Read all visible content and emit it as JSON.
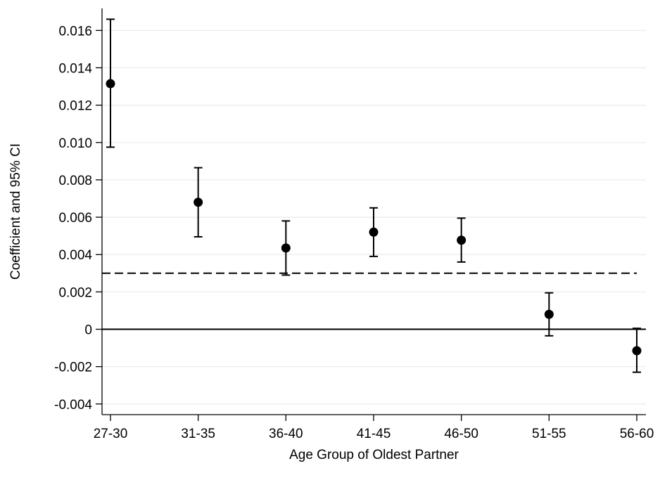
{
  "chart_data": {
    "type": "scatter",
    "subtype": "coefficient plot with 95% confidence intervals",
    "xlabel": "Age Group of Oldest Partner",
    "ylabel": "Coefficient and 95% CI",
    "categories": [
      "27-30",
      "31-35",
      "36-40",
      "41-45",
      "46-50",
      "51-55",
      "56-60"
    ],
    "series": [
      {
        "coefficients": [
          0.01315,
          0.0068,
          0.00435,
          0.0052,
          0.00477,
          0.0008,
          -0.00115
        ],
        "ci_lower": [
          0.00975,
          0.00495,
          0.0029,
          0.0039,
          0.0036,
          -0.00035,
          -0.0023
        ],
        "ci_upper": [
          0.0166,
          0.00865,
          0.0058,
          0.0065,
          0.00595,
          0.00195,
          5e-05
        ]
      }
    ],
    "yticks": [
      "0.016",
      "0.014",
      "0.012",
      "0.010",
      "0.008",
      "0.006",
      "0.004",
      "0.002",
      "0",
      "-0.002",
      "-0.004"
    ],
    "ylim": [
      -0.0047,
      0.0172
    ],
    "reference_lines": [
      {
        "value": 0,
        "style": "solid"
      },
      {
        "value": 0.003,
        "style": "dashed"
      }
    ],
    "grid": true,
    "legend": "none"
  }
}
